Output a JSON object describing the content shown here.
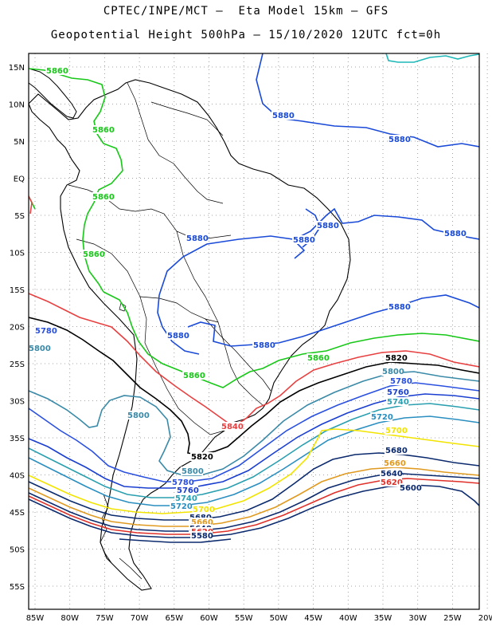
{
  "header": {
    "line1": "CPTEC/INPE/MCT –  Eta Model 15km – GFS",
    "line2": "Geopotential Height 500hPa – 15/10/2020 12UTC fct=0h"
  },
  "map": {
    "lon_labels": [
      "85W",
      "80W",
      "75W",
      "70W",
      "65W",
      "60W",
      "55W",
      "50W",
      "45W",
      "40W",
      "35W",
      "30W",
      "25W",
      "20W"
    ],
    "lat_labels": [
      "15N",
      "10N",
      "5N",
      "EQ",
      "5S",
      "10S",
      "15S",
      "20S",
      "25S",
      "30S",
      "35S",
      "40S",
      "45S",
      "50S",
      "55S"
    ],
    "grid": "dotted"
  },
  "contours": {
    "colors": {
      "5580": "#0b2a6e",
      "5600": "#0b2a6e",
      "5620": "#e0302a",
      "5640": "#0b2a6e",
      "5660": "#e09a20",
      "5680": "#0b2a6e",
      "5700": "#f2e400",
      "5720": "#2a8fc0",
      "5740": "#2a9fb0",
      "5760": "#1a3fd0",
      "5780": "#2a50e0",
      "5800": "#3a8aa8",
      "5820": "#000000",
      "5840": "#e84040",
      "5860": "#18c818",
      "5880": "#1a4ad8",
      "5900": "#1fb8b8"
    },
    "labels": [
      {
        "text": "5860",
        "color": "#18c818"
      },
      {
        "text": "5860",
        "color": "#18c818"
      },
      {
        "text": "5860",
        "color": "#18c818"
      },
      {
        "text": "5860",
        "color": "#18c818"
      },
      {
        "text": "5880",
        "color": "#1a4ad8"
      },
      {
        "text": "5880",
        "color": "#1a4ad8"
      },
      {
        "text": "5880",
        "color": "#1a4ad8"
      },
      {
        "text": "5880",
        "color": "#1a4ad8"
      },
      {
        "text": "5880",
        "color": "#1a4ad8"
      },
      {
        "text": "5880",
        "color": "#1a4ad8"
      },
      {
        "text": "5880",
        "color": "#1a4ad8"
      },
      {
        "text": "5880",
        "color": "#1a4ad8"
      },
      {
        "text": "5880",
        "color": "#1a4ad8"
      },
      {
        "text": "5860",
        "color": "#18c818"
      },
      {
        "text": "5860",
        "color": "#18c818"
      },
      {
        "text": "5820",
        "color": "#000000"
      },
      {
        "text": "5800",
        "color": "#3a8aa8"
      },
      {
        "text": "5780",
        "color": "#2a50e0"
      },
      {
        "text": "5760",
        "color": "#1a3fd0"
      },
      {
        "text": "5740",
        "color": "#2a9fb0"
      },
      {
        "text": "5720",
        "color": "#2a8fc0"
      },
      {
        "text": "5700",
        "color": "#f2e400"
      },
      {
        "text": "5680",
        "color": "#0b2a6e"
      },
      {
        "text": "5660",
        "color": "#e09a20"
      },
      {
        "text": "5640",
        "color": "#0b2a6e"
      },
      {
        "text": "5620",
        "color": "#e0302a"
      },
      {
        "text": "5600",
        "color": "#0b2a6e"
      },
      {
        "text": "5840",
        "color": "#e84040"
      },
      {
        "text": "5800",
        "color": "#3a8aa8"
      },
      {
        "text": "5820",
        "color": "#000000"
      },
      {
        "text": "5800",
        "color": "#3a8aa8"
      },
      {
        "text": "5780",
        "color": "#2a50e0"
      },
      {
        "text": "5760",
        "color": "#1a3fd0"
      },
      {
        "text": "5740",
        "color": "#2a9fb0"
      },
      {
        "text": "5720",
        "color": "#2a8fc0"
      },
      {
        "text": "5700",
        "color": "#f2e400"
      },
      {
        "text": "5680",
        "color": "#0b2a6e"
      },
      {
        "text": "5660",
        "color": "#e09a20"
      },
      {
        "text": "5640",
        "color": "#0b2a6e"
      },
      {
        "text": "5620",
        "color": "#e0302a"
      },
      {
        "text": "5580",
        "color": "#0b2a6e"
      },
      {
        "text": "5780",
        "color": "#2a50e0"
      },
      {
        "text": "5800",
        "color": "#3a8aa8"
      }
    ]
  }
}
